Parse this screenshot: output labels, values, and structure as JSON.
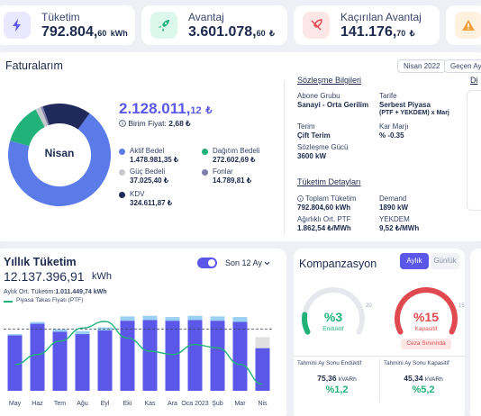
{
  "kpis": [
    {
      "label": "Tüketim",
      "value": "792.804,",
      "dec": "60",
      "unit": "kWh",
      "bg": "#eae8ff",
      "color": "#5b57e8"
    },
    {
      "label": "Avantaj",
      "value": "3.601.078,",
      "dec": "60",
      "unit": "₺",
      "bg": "#dcf7ec",
      "color": "#21b27a"
    },
    {
      "label": "Kaçırılan Avantaj",
      "value": "141.176,",
      "dec": "70",
      "unit": "₺",
      "bg": "#fde6e6",
      "color": "#e0494f"
    },
    {
      "label": "",
      "value": "",
      "dec": "",
      "unit": "",
      "bg": "#fff1de",
      "color": "#f2a03a"
    }
  ],
  "invoices": {
    "title": "Faturalarım",
    "period_select": "Nisan 2022",
    "period_prev": "Geçen Ay",
    "donut_label": "Nisan",
    "total": "2.128.011,",
    "total_dec": "12",
    "total_unit": "₺",
    "unit_price_label": "Birim Fiyat:",
    "unit_price": "2,68 ₺",
    "segments": [
      {
        "name": "Aktif Bedel",
        "value": "1.478.981,35 ₺",
        "amount": 1478981.35,
        "color": "#5b7ce8"
      },
      {
        "name": "Dağıtım Bedeli",
        "value": "272.602,69 ₺",
        "amount": 272602.69,
        "color": "#21b27a"
      },
      {
        "name": "Güç Bedeli",
        "value": "37.025,40 ₺",
        "amount": 37025.4,
        "color": "#c7c9cf"
      },
      {
        "name": "Fonlar",
        "value": "14.789,81 ₺",
        "amount": 14789.81,
        "color": "#7e7fae"
      },
      {
        "name": "KDV",
        "value": "324.611,87 ₺",
        "amount": 324611.87,
        "color": "#1f2a5a"
      }
    ]
  },
  "contract": {
    "title": "Sözleşme Bilgileri",
    "group_label": "Abone Grubu",
    "group_value": "Sanayi - Orta Gerilim",
    "tariff_label": "Tarife",
    "tariff_value": "Serbest Piyasa",
    "tariff_value2": "(PTF + YEKDEM) x Marj",
    "term_label": "Terim",
    "term_value": "Çift Terim",
    "margin_label": "Kar Marjı",
    "margin_value": "% -0.35",
    "power_label": "Sözleşme Gücü",
    "power_value": "3600 kW",
    "side_label": "Di"
  },
  "consumption_details": {
    "title": "Tüketim Detayları",
    "total_label": "Toplam Tüketim",
    "total_value": "792.804,60 kWh",
    "demand_label": "Demand",
    "demand_value": "1890 kW",
    "ptf_label": "Ağırlıklı Ort. PTF",
    "ptf_value": "1.862,54 ₺/MWh",
    "yekdem_label": "YEKDEM",
    "yekdem_value": "9,52 ₺/MWh"
  },
  "annual": {
    "title": "Yıllık Tüketim",
    "total": "12.137.396,91",
    "unit": "kWh",
    "range": "Son 12 Ay",
    "avg_label": "Aylık Ort. Tüketim:",
    "avg_value": "1.011.449,74 kWh",
    "legend_ptf": "Piyasa Takas Fiyatı (PTF)"
  },
  "chart_data": {
    "type": "bar",
    "categories": [
      "May",
      "Haz",
      "Tem",
      "Ağu",
      "Eyl",
      "Eki",
      "Kas",
      "Ara",
      "Oca 2023",
      "Şub",
      "Mar",
      "Nis"
    ],
    "series": [
      {
        "values": [
          910000,
          1100000,
          970000,
          930000,
          990000,
          1150000,
          1160000,
          1150000,
          1160000,
          1150000,
          1130000,
          700000
        ]
      },
      {
        "values": [
          20000,
          30000,
          40000,
          50000,
          50000,
          70000,
          70000,
          60000,
          70000,
          70000,
          80000,
          180000
        ]
      },
      {
        "name": "Piyasa Takas Fiyatı (PTF)",
        "type": "line",
        "values": [
          40,
          55,
          75,
          95,
          105,
          80,
          60,
          55,
          70,
          65,
          40,
          10
        ]
      }
    ],
    "reference_line": 1011449.74,
    "colors": [
      "#5b57e8",
      "#9ad0f5",
      "#e0e0e0",
      "#21b27a"
    ]
  },
  "compensation": {
    "title": "Kompanzasyon",
    "tab_monthly": "Aylık",
    "tab_daily": "Günlük",
    "inductive": {
      "value": "%3",
      "label": "Endüktif",
      "limit": "20",
      "fraction": 0.15,
      "color": "#21b27a",
      "foot_label": "Tahmini Ay Sonu Endüktif",
      "foot_value": "75,36",
      "foot_unit": "kVARh",
      "foot_pct": "%1,2"
    },
    "capacitive": {
      "value": "%15",
      "label": "Kapasitif",
      "limit": "15",
      "fraction": 1.0,
      "color": "#e0494f",
      "badge": "Ceza Sınırında",
      "foot_label": "Tahmini Ay Sonu Kapasitif",
      "foot_value": "45,34",
      "foot_unit": "kVARh",
      "foot_pct": "%5,2"
    }
  }
}
